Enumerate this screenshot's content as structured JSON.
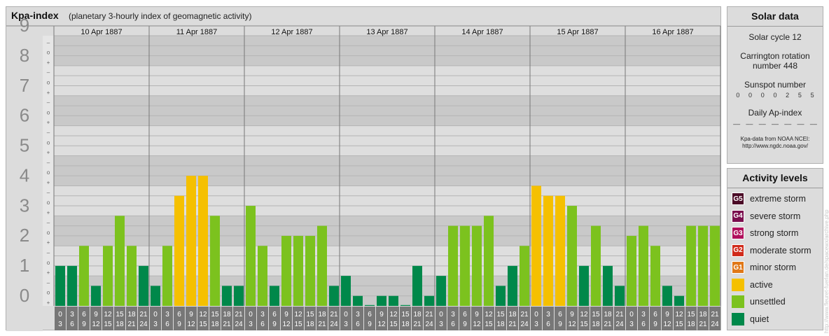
{
  "title": "Kpa-index",
  "subtitle": "(planetary 3-hourly index of geomagnetic activity)",
  "chart_data": {
    "type": "bar",
    "title": "Kpa-index",
    "subtitle": "(planetary 3-hourly index of geomagnetic activity)",
    "ylim": [
      0,
      9
    ],
    "y_ticks": [
      "0",
      "1",
      "2",
      "3",
      "4",
      "5",
      "6",
      "7",
      "8",
      "9"
    ],
    "sub_ticks": [
      "+",
      "o",
      "–"
    ],
    "days": [
      "10 Apr 1887",
      "11 Apr 1887",
      "12 Apr 1887",
      "13 Apr 1887",
      "14 Apr 1887",
      "15 Apr 1887",
      "16 Apr 1887"
    ],
    "hour_ranges": [
      [
        "0",
        "3"
      ],
      [
        "3",
        "6"
      ],
      [
        "6",
        "9"
      ],
      [
        "9",
        "12"
      ],
      [
        "12",
        "15"
      ],
      [
        "15",
        "18"
      ],
      [
        "18",
        "21"
      ],
      [
        "21",
        "24"
      ]
    ],
    "values": [
      [
        1.333,
        1.333,
        2,
        0.667,
        2,
        3,
        2,
        1.333
      ],
      [
        0.667,
        2,
        3.667,
        4.333,
        4.333,
        3,
        0.667,
        0.667
      ],
      [
        3.333,
        2,
        0.667,
        2.333,
        2.333,
        2.333,
        2.667,
        0.667
      ],
      [
        1,
        0.333,
        0,
        0.333,
        0.333,
        0,
        1.333,
        0.333
      ],
      [
        1,
        2.667,
        2.667,
        2.667,
        3,
        0.667,
        1.333,
        2
      ],
      [
        4,
        3.667,
        3.667,
        3.333,
        1.333,
        2.667,
        1.333,
        0.667
      ],
      [
        2.333,
        2.667,
        2,
        0.667,
        0.333,
        2.667,
        2.667,
        2.667
      ]
    ],
    "grid": true
  },
  "solar": {
    "title": "Solar data",
    "cycle": "Solar cycle 12",
    "rotation_line1": "Carrington rotation",
    "rotation_line2": "number 448",
    "sunspot_label": "Sunspot number",
    "sunspots": [
      "0",
      "0",
      "0",
      "0",
      "2",
      "5",
      "5"
    ],
    "ap_label": "Daily Ap-index",
    "ap_values": [
      "––",
      "––",
      "––",
      "––",
      "––",
      "––",
      "––"
    ],
    "source_line1": "Kpa-data from NOAA NCEI:",
    "source_line2": "http://www.ngdc.noaa.gov/"
  },
  "legend": {
    "title": "Activity levels",
    "items": [
      {
        "badge": "G5",
        "label": "extreme storm",
        "color": "#4a0a26"
      },
      {
        "badge": "G4",
        "label": "severe storm",
        "color": "#7a0e4e"
      },
      {
        "badge": "G3",
        "label": "strong storm",
        "color": "#b0105c"
      },
      {
        "badge": "G2",
        "label": "moderate storm",
        "color": "#d02a1a"
      },
      {
        "badge": "G1",
        "label": "minor storm",
        "color": "#e07818"
      },
      {
        "badge": "",
        "label": "active",
        "color": "#f5c000"
      },
      {
        "badge": "",
        "label": "unsettled",
        "color": "#7cc21e"
      },
      {
        "badge": "",
        "label": "quiet",
        "color": "#00884a"
      }
    ]
  },
  "colors": {
    "quiet": "#00884a",
    "unsettled": "#7cc21e",
    "active": "#f5c000"
  },
  "watermark": "http://www.fleuret-fuerlan.de/spacewx/archive.php"
}
